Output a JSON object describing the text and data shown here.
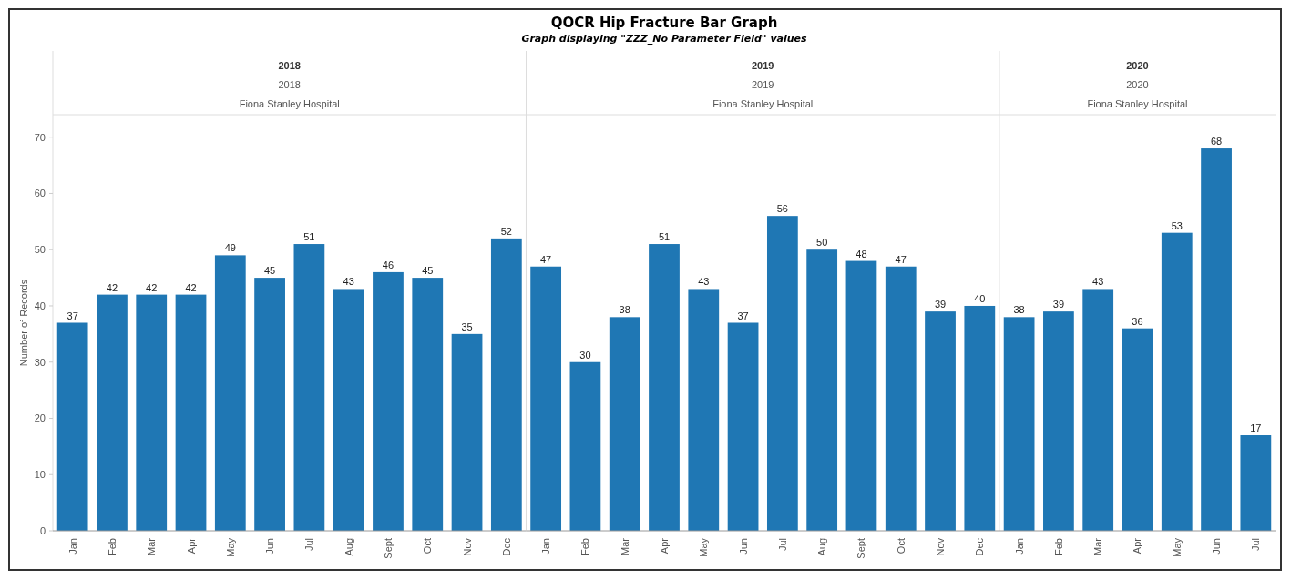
{
  "chart_data": [
    {
      "type": "other",
      "title": "QOCR Hip Fracture Bar Graph",
      "subtitle": "Graph displaying \"ZZZ_No Parameter Field\" values"
    },
    {
      "type": "bar",
      "ylabel": "Number of Records",
      "annotations": [
        "2018",
        "2018",
        "Fiona Stanley Hospital"
      ],
      "categories": [
        "Jan",
        "Feb",
        "Mar",
        "Apr",
        "May",
        "Jun",
        "Jul",
        "Aug",
        "Sept",
        "Oct",
        "Nov",
        "Dec"
      ],
      "values": [
        37,
        42,
        42,
        42,
        49,
        45,
        51,
        43,
        46,
        45,
        35,
        52
      ],
      "color": "#1f77b4",
      "data_labels": true,
      "ylim": [
        0,
        74
      ],
      "yticks": [
        0,
        10,
        20,
        30,
        40,
        50,
        60,
        70
      ]
    },
    {
      "type": "bar",
      "annotations": [
        "2019",
        "2019",
        "Fiona Stanley Hospital"
      ],
      "categories": [
        "Jan",
        "Feb",
        "Mar",
        "Apr",
        "May",
        "Jun",
        "Jul",
        "Aug",
        "Sept",
        "Oct",
        "Nov",
        "Dec"
      ],
      "values": [
        47,
        30,
        38,
        51,
        43,
        37,
        56,
        50,
        48,
        47,
        39,
        40
      ],
      "color": "#1f77b4",
      "data_labels": true,
      "ylim": [
        0,
        74
      ],
      "tick_labels": "x"
    },
    {
      "type": "bar",
      "annotations": [
        "2020",
        "2020",
        "Fiona Stanley Hospital"
      ],
      "categories": [
        "Jan",
        "Feb",
        "Mar",
        "Apr",
        "May",
        "Jun",
        "Jul"
      ],
      "values": [
        38,
        39,
        43,
        36,
        53,
        68,
        17
      ],
      "color": "#1f77b4",
      "data_labels": true,
      "ylim": [
        0,
        74
      ],
      "tick_labels": "x"
    }
  ]
}
